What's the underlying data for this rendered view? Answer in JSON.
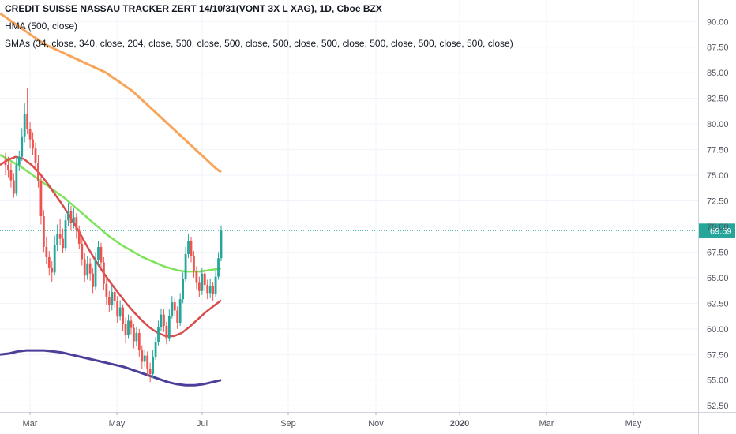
{
  "header": {
    "title": "CREDIT SUISSE NASSAU TRACKER ZERT 14/10/31(VONT 3X L XAG), 1D, Cboe BZX",
    "indicator_hma": "HMA (500, close)",
    "indicator_smas": "SMAs (34, close, 340, close, 204, close, 500, close, 500, close, 500, close, 500, close, 500, close, 500, close, 500, close)"
  },
  "colors": {
    "up": "#26a69a",
    "down": "#ef5350",
    "hma": "#f7a55a",
    "sma_green": "#7ee35a",
    "sma_red": "#d84c4c",
    "sma_blue": "#4c3f9a",
    "last_price": "#26a69a",
    "grid": "#f0f3fa"
  },
  "chart_data": {
    "type": "candlestick",
    "y_ticks": [
      52.5,
      55,
      57.5,
      60,
      62.5,
      65,
      67.5,
      70,
      72.5,
      75,
      77.5,
      80,
      82.5,
      85,
      87.5,
      90
    ],
    "y_tick_labels": [
      "52.50",
      "55.00",
      "57.50",
      "60.00",
      "62.50",
      "65.00",
      "67.50",
      "70.00",
      "72.50",
      "75.00",
      "77.50",
      "80.00",
      "82.50",
      "85.00",
      "87.50",
      "90.00"
    ],
    "ylim": [
      51.9,
      92.1
    ],
    "x_labels": [
      "Mar",
      "May",
      "Jul",
      "Sep",
      "Nov",
      "2020",
      "Mar",
      "May"
    ],
    "last_price": 69.59,
    "last_price_label": "69.59",
    "candles": [
      [
        76.5,
        76,
        77.2,
        75
      ],
      [
        76,
        75.5,
        76.8,
        74.8
      ],
      [
        75.5,
        74.5,
        76.2,
        73.8
      ],
      [
        74.5,
        73.2,
        75.2,
        72.8
      ],
      [
        73.2,
        76,
        76.8,
        73
      ],
      [
        76,
        76.8,
        77.4,
        75.4
      ],
      [
        76.8,
        78.8,
        79.6,
        76.4
      ],
      [
        78.8,
        81,
        82,
        78.2
      ],
      [
        81,
        79.5,
        83.5,
        79
      ],
      [
        79.5,
        78.5,
        80.2,
        77.6
      ],
      [
        78.5,
        77.6,
        79.2,
        77
      ],
      [
        77.6,
        76.2,
        78.2,
        75.4
      ],
      [
        76.2,
        74.4,
        77,
        73.8
      ],
      [
        74.4,
        71,
        75,
        70.2
      ],
      [
        71,
        68,
        71.6,
        67.5
      ],
      [
        68,
        67,
        69,
        66.3
      ],
      [
        67,
        66,
        67.6,
        65.2
      ],
      [
        66,
        65.5,
        66.6,
        64.6
      ],
      [
        65.5,
        68.2,
        69.1,
        65.2
      ],
      [
        68.2,
        69.3,
        70.2,
        67.6
      ],
      [
        69.3,
        68.8,
        70.7,
        68.2
      ],
      [
        68.8,
        67.9,
        69.8,
        67.4
      ],
      [
        67.9,
        70.6,
        71.2,
        67.6
      ],
      [
        70.6,
        71.5,
        72.3,
        70
      ],
      [
        71.5,
        70.3,
        72,
        69.6
      ],
      [
        70.3,
        70.9,
        71.8,
        69.8
      ],
      [
        70.9,
        69.6,
        71.3,
        68.8
      ],
      [
        69.6,
        68.3,
        70.1,
        67.8
      ],
      [
        68.3,
        66.8,
        68.8,
        66.2
      ],
      [
        66.8,
        65.2,
        67.4,
        64.6
      ],
      [
        65.2,
        66.4,
        67.1,
        64.8
      ],
      [
        66.4,
        65.4,
        66.9,
        64.7
      ],
      [
        65.4,
        64.1,
        65.9,
        63.5
      ],
      [
        64.1,
        66.7,
        67.5,
        63.8
      ],
      [
        66.7,
        68,
        68.6,
        66.1
      ],
      [
        68,
        66.5,
        68.4,
        65.9
      ],
      [
        66.5,
        64.4,
        67,
        63.8
      ],
      [
        64.4,
        63.1,
        64.9,
        62.3
      ],
      [
        63.1,
        62.3,
        63.7,
        61.6
      ],
      [
        62.3,
        63.6,
        64.2,
        61.8
      ],
      [
        63.6,
        62.7,
        64,
        62.1
      ],
      [
        62.7,
        61.2,
        63.2,
        60.6
      ],
      [
        61.2,
        62.1,
        62.8,
        60.8
      ],
      [
        62.1,
        60.5,
        62.4,
        59.8
      ],
      [
        60.5,
        59.4,
        61.1,
        58.6
      ],
      [
        59.4,
        60.8,
        61.4,
        59.1
      ],
      [
        60.8,
        60.1,
        61.3,
        59.5
      ],
      [
        60.1,
        58.8,
        60.5,
        58.1
      ],
      [
        58.8,
        59.6,
        60.2,
        58.3
      ],
      [
        59.6,
        57.9,
        60,
        57.3
      ],
      [
        57.9,
        56.8,
        58.4,
        56.1
      ],
      [
        56.8,
        57.4,
        58,
        56.3
      ],
      [
        57.4,
        56.1,
        57.8,
        55.4
      ],
      [
        56.1,
        55.6,
        56.7,
        54.8
      ],
      [
        55.6,
        57.3,
        57.9,
        55.2
      ],
      [
        57.3,
        58.7,
        59.2,
        57
      ],
      [
        58.7,
        60.2,
        60.8,
        58.4
      ],
      [
        60.2,
        61.4,
        62,
        59.8
      ],
      [
        61.4,
        60.3,
        61.9,
        59.7
      ],
      [
        60.3,
        59.1,
        60.7,
        58.5
      ],
      [
        59.1,
        61.3,
        61.9,
        58.8
      ],
      [
        61.3,
        62.6,
        63.2,
        61
      ],
      [
        62.6,
        61.8,
        63,
        61.2
      ],
      [
        61.8,
        60.6,
        62.2,
        60
      ],
      [
        60.6,
        62.9,
        63.5,
        60.3
      ],
      [
        62.9,
        64.9,
        65.5,
        62.5
      ],
      [
        64.9,
        67.3,
        68,
        64.6
      ],
      [
        67.3,
        68.6,
        69.3,
        66.9
      ],
      [
        68.6,
        67.1,
        69,
        66.5
      ],
      [
        67.1,
        65.6,
        67.6,
        65
      ],
      [
        65.6,
        64.5,
        66.1,
        63.9
      ],
      [
        64.5,
        63.7,
        65.1,
        63.1
      ],
      [
        63.7,
        65.4,
        66,
        63.3
      ],
      [
        65.4,
        64.3,
        65.8,
        63.7
      ],
      [
        64.3,
        63.5,
        64.8,
        62.9
      ],
      [
        63.5,
        64.2,
        64.9,
        63
      ],
      [
        64.2,
        63.4,
        64.6,
        62.7
      ],
      [
        63.4,
        65.1,
        65.7,
        63.1
      ],
      [
        65.1,
        66.9,
        67.5,
        64.8
      ],
      [
        66.9,
        69.59,
        70.1,
        66.6
      ]
    ],
    "hma": [
      90.8,
      90.5,
      90.2,
      89.9,
      89.6,
      89.3,
      89,
      88.7,
      88.4,
      88.1,
      87.8,
      87.6,
      87.4,
      87.2,
      87,
      86.8,
      86.6,
      86.4,
      86.2,
      86,
      85.8,
      85.6,
      85.4,
      85.2,
      85,
      84.7,
      84.4,
      84.1,
      83.8,
      83.5,
      83.2,
      82.8,
      82.4,
      82,
      81.6,
      81.2,
      80.8,
      80.4,
      80,
      79.6,
      79.2,
      78.8,
      78.4,
      78,
      77.6,
      77.2,
      76.8,
      76.4,
      76,
      75.6,
      75.3
    ],
    "sma_green": [
      77,
      76.6,
      76.2,
      75.8,
      75.3,
      74.8,
      74.3,
      73.8,
      73.3,
      72.8,
      72.2,
      71.6,
      71,
      70.4,
      69.8,
      69.2,
      68.7,
      68.2,
      67.8,
      67.4,
      67,
      66.7,
      66.4,
      66.1,
      65.9,
      65.7,
      65.6,
      65.6,
      65.6,
      65.7,
      65.8,
      65.9
    ],
    "sma_red": [
      76,
      76.5,
      76.8,
      76.6,
      76,
      75.2,
      74.2,
      73.1,
      72,
      70.8,
      69.5,
      68.1,
      66.8,
      65.6,
      64.5,
      63.5,
      62.5,
      61.6,
      60.8,
      60.1,
      59.6,
      59.3,
      59.3,
      59.6,
      60.2,
      60.9,
      61.6,
      62.2,
      62.8
    ],
    "sma_blue": [
      57.5,
      57.6,
      57.8,
      57.9,
      57.9,
      57.9,
      57.8,
      57.7,
      57.5,
      57.3,
      57.1,
      56.9,
      56.7,
      56.5,
      56.3,
      56,
      55.7,
      55.4,
      55.1,
      54.8,
      54.6,
      54.5,
      54.5,
      54.6,
      54.8,
      55
    ]
  }
}
